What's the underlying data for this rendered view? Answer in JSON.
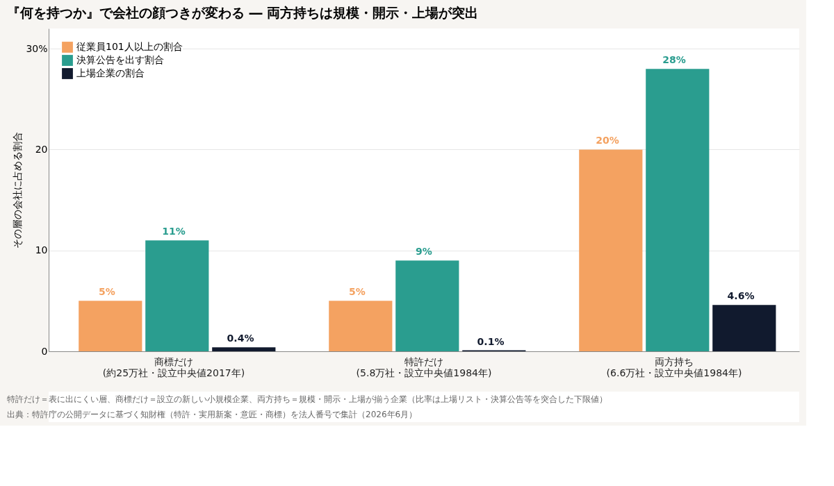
{
  "chart_data": {
    "type": "bar",
    "title": "『何を持つか』で会社の顔つきが変わる ― 両方持ちは規模・開示・上場が突出",
    "ylabel": "その層の会社に占める割合",
    "categories": [
      "商標だけ\n(約25万社・設立中央値2017年)",
      "特許だけ\n(5.8万社・設立中央値1984年)",
      "両方持ち\n(6.6万社・設立中央値1984年)"
    ],
    "series": [
      {
        "name": "従業員101人以上の割合",
        "color": "#f4a261",
        "values": [
          5,
          5,
          20
        ],
        "value_labels": [
          "5%",
          "5%",
          "20%"
        ]
      },
      {
        "name": "決算公告を出す割合",
        "color": "#2a9d8f",
        "values": [
          11,
          9,
          28
        ],
        "value_labels": [
          "11%",
          "9%",
          "28%"
        ]
      },
      {
        "name": "上場企業の割合",
        "color": "#111a2e",
        "values": [
          0.4,
          0.1,
          4.6
        ],
        "value_labels": [
          "0.4%",
          "0.1%",
          "4.6%"
        ]
      }
    ],
    "ylim": [
      0,
      32
    ],
    "yticks": [
      0,
      10,
      20,
      {
        "value": 30,
        "label": "30%"
      }
    ],
    "grid": "y",
    "legend": "top left",
    "annotations": [
      "特許だけ＝表に出にくい層、商標だけ＝設立の新しい小規模企業、両方持ち＝規模・開示・上場が揃う企業（比率は上場リスト・決算公告等を突合した下限値）",
      "出典：特許庁の公開データに基づく知財権（特許・実用新案・意匠・商標）を法人番号で集計（2026年6月）"
    ]
  }
}
